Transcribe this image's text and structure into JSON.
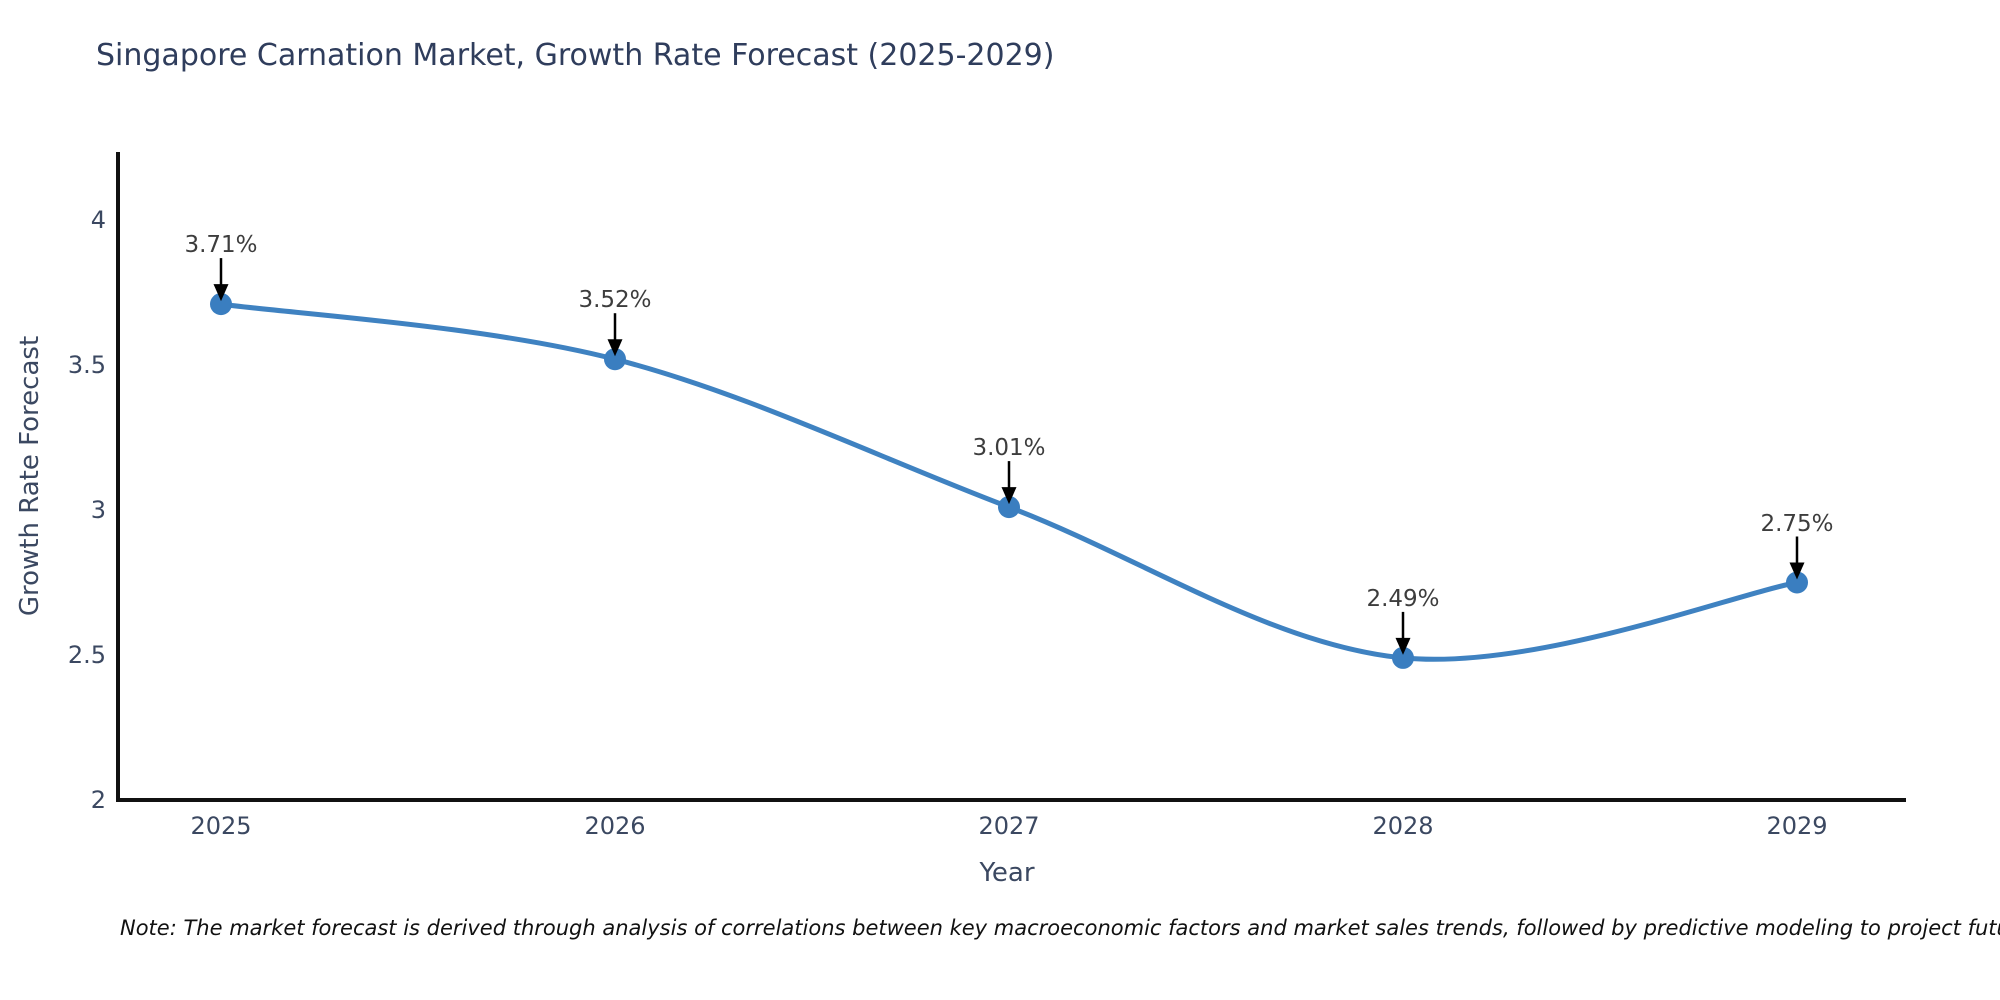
{
  "title": "Singapore Carnation Market, Growth Rate Forecast (2025-2029)",
  "note": "Note: The market forecast is derived through analysis of correlations between key macroeconomic factors and market sales trends, followed by predictive modeling to project future sales",
  "chart_data": {
    "type": "line",
    "title": "Singapore Carnation Market, Growth Rate Forecast (2025-2029)",
    "xlabel": "Year",
    "ylabel": "Growth Rate Forecast",
    "x": [
      "2025",
      "2026",
      "2027",
      "2028",
      "2029"
    ],
    "series": [
      {
        "name": "Growth Rate Forecast",
        "values": [
          3.71,
          3.52,
          3.01,
          2.49,
          2.75
        ]
      }
    ],
    "point_labels": [
      "3.71%",
      "3.52%",
      "3.01%",
      "2.49%",
      "2.75%"
    ],
    "yticks": [
      "2",
      "2.5",
      "3",
      "3.5",
      "4"
    ],
    "ytick_values": [
      2,
      2.5,
      3,
      3.5,
      4
    ],
    "ylim": [
      2,
      4.23
    ],
    "line_shape": "spline",
    "markers": true,
    "grid": false,
    "legend": false,
    "colors": {
      "line": "#3f82c1",
      "marker": "#3a7ec0",
      "arrow": "#000000",
      "annotation_text": "#3d3d3d",
      "axis_text": "#3b4861",
      "title_text": "#2f3d5c",
      "spine": "#111111",
      "background": "#ffffff"
    }
  }
}
